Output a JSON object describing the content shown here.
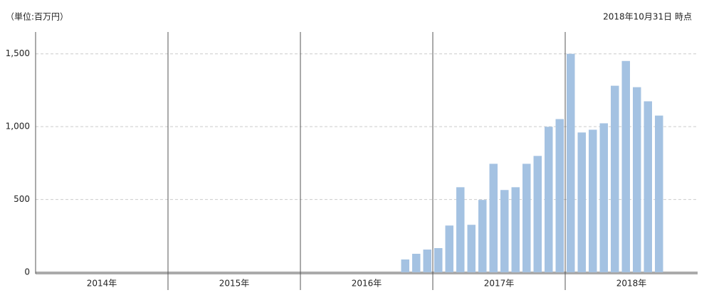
{
  "chart_data": {
    "type": "bar",
    "unit_note": "（単位:百万円）",
    "date_note": "2018年10月31日 時点",
    "groups": [
      "2014年",
      "2015年",
      "2016年",
      "2017年",
      "2018年"
    ],
    "categories": [
      null,
      null,
      null,
      null,
      null,
      null,
      null,
      null,
      null,
      null,
      null,
      null,
      null,
      null,
      null,
      null,
      null,
      null,
      null,
      null,
      null,
      null,
      null,
      null,
      null,
      null,
      null,
      null,
      null,
      null,
      null,
      null,
      null,
      null,
      null,
      null,
      null,
      null,
      null,
      null,
      null,
      null,
      null,
      null,
      null,
      null,
      null,
      null,
      null,
      null,
      null,
      null,
      null,
      null,
      null,
      null,
      null,
      null,
      null,
      null
    ],
    "values": [
      null,
      null,
      null,
      null,
      null,
      null,
      null,
      null,
      null,
      null,
      null,
      null,
      null,
      null,
      null,
      null,
      null,
      null,
      null,
      null,
      null,
      null,
      null,
      null,
      null,
      null,
      null,
      null,
      null,
      null,
      null,
      null,
      null,
      88,
      127,
      156,
      166,
      321,
      584,
      326,
      497,
      745,
      565,
      584,
      745,
      799,
      999,
      1052,
      1500,
      960,
      979,
      1023,
      1281,
      1451,
      1271,
      1174,
      1076,
      null,
      null,
      null
    ],
    "color": "#a4c2e2",
    "ylim": [
      0,
      1650
    ],
    "yticks": [
      0,
      500,
      {
        "value": 1000,
        "label": "1,000"
      },
      {
        "value": 1500,
        "label": "1,500"
      }
    ],
    "grid": true
  }
}
